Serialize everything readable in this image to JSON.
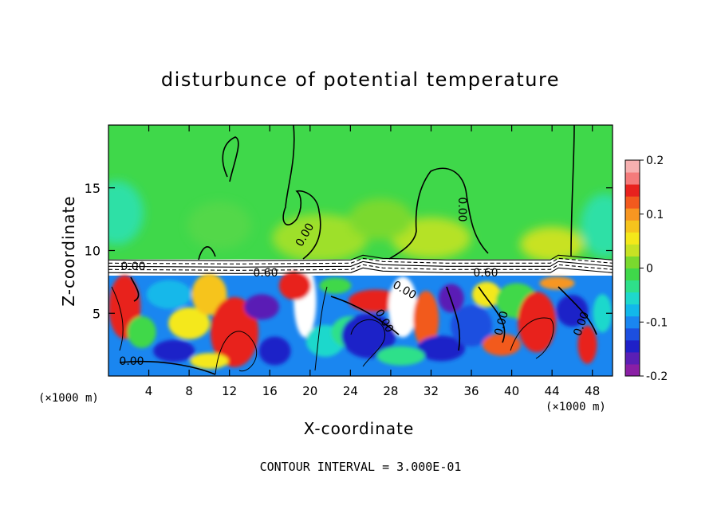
{
  "chart_data": {
    "type": "heatmap",
    "title": "disturbunce of potential temperature",
    "xlabel": "X-coordinate",
    "ylabel": "Z-coordinate",
    "x_unit": "(×1000 m)",
    "xlim": [
      0,
      50
    ],
    "ylim": [
      0,
      20
    ],
    "x_ticks": [
      4,
      8,
      12,
      16,
      20,
      24,
      28,
      32,
      36,
      40,
      44,
      48
    ],
    "y_ticks": [
      5,
      10,
      15
    ],
    "colorbar": {
      "range": [
        -0.2,
        0.2
      ],
      "ticks": [
        "0.2",
        "0.1",
        "0",
        "-0.1",
        "-0.2"
      ],
      "colors": [
        "#8a1fa5",
        "#5a1fb5",
        "#1f20c8",
        "#1c4fe0",
        "#1a86f0",
        "#12b8ea",
        "#1ed8cc",
        "#2ee08a",
        "#3fd84a",
        "#7ad92e",
        "#c7e224",
        "#f4e81a",
        "#f6c41d",
        "#f79621",
        "#f25a1e",
        "#e8221e",
        "#f47b7b",
        "#f6b0b0"
      ]
    },
    "contour_labels": [
      "0.00",
      "0.00",
      "0.00",
      "0.60",
      "0.60",
      "0.00",
      "0.00",
      "0.00",
      "0.00",
      "0.00"
    ],
    "contour_interval_label": "CONTOUR INTERVAL = 3.000E-01",
    "grid": false
  }
}
